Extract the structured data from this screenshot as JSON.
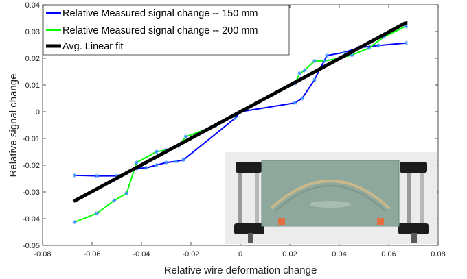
{
  "chart_data": {
    "type": "line",
    "xlabel": "Relative wire deformation change",
    "ylabel": "Relative signal change",
    "xlim": [
      -0.08,
      0.08
    ],
    "ylim": [
      -0.05,
      0.04
    ],
    "x_ticks": [
      "-0.08",
      "-0.06",
      "-0.04",
      "-0.02",
      "0",
      "0.02",
      "0.04",
      "0.06",
      "0.08"
    ],
    "y_ticks": [
      "-0.05",
      "-0.04",
      "-0.03",
      "-0.02",
      "-0.01",
      "0",
      "0.01",
      "0.02",
      "0.03",
      "0.04"
    ],
    "grid": false,
    "legend_position": "top-left",
    "series": [
      {
        "name": "Relative Measured signal change -- 150 mm",
        "color": "#0000ff",
        "marker": "asterisk",
        "x": [
          -0.067,
          -0.058,
          -0.05,
          -0.046,
          -0.042,
          -0.038,
          -0.034,
          -0.03,
          -0.026,
          -0.023,
          -0.002,
          0.0,
          0.022,
          0.025,
          0.03,
          0.035,
          0.042,
          0.048,
          0.056,
          0.067
        ],
        "y": [
          -0.0238,
          -0.024,
          -0.024,
          -0.023,
          -0.0212,
          -0.021,
          -0.02,
          -0.019,
          -0.0186,
          -0.018,
          -0.0023,
          0.0,
          0.0033,
          0.005,
          0.012,
          0.021,
          0.0222,
          0.024,
          0.0248,
          0.0257
        ]
      },
      {
        "name": "Relative Measured signal change -- 200 mm",
        "color": "#00ff00",
        "marker": "asterisk",
        "x": [
          -0.067,
          -0.058,
          -0.051,
          -0.046,
          -0.042,
          -0.034,
          -0.03,
          -0.025,
          -0.022,
          -0.01,
          0.0,
          0.022,
          0.024,
          0.026,
          0.03,
          0.034,
          0.04,
          0.045,
          0.052,
          0.058,
          0.067
        ],
        "y": [
          -0.0413,
          -0.038,
          -0.0332,
          -0.0305,
          -0.019,
          -0.015,
          -0.0143,
          -0.0128,
          -0.0093,
          -0.0052,
          0.0,
          0.0105,
          0.0143,
          0.0155,
          0.019,
          0.019,
          0.02,
          0.0212,
          0.0238,
          0.028,
          0.032
        ]
      },
      {
        "name": "Avg. Linear fit",
        "color": "#000000",
        "marker": "asterisk",
        "x": [
          -0.067,
          0.067
        ],
        "y": [
          -0.0333,
          0.0333
        ]
      }
    ]
  },
  "inset": {
    "label": "photo-of-clamped-wire-fixture"
  }
}
